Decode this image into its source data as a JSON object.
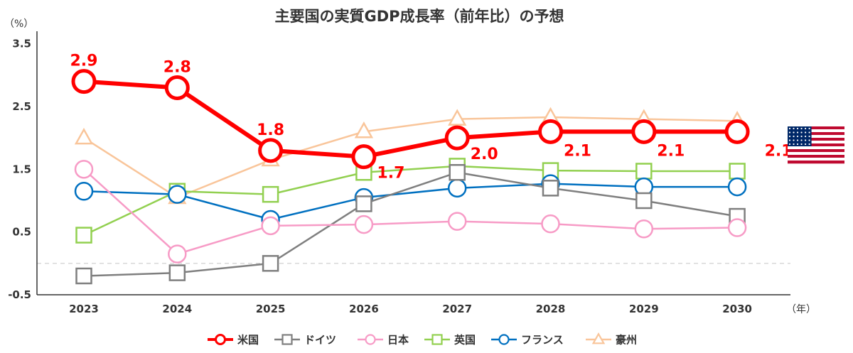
{
  "chart_data": {
    "type": "line",
    "title": "主要国の実質GDP成長率（前年比）の予想",
    "ylabel": "（%）",
    "xlabel": "（年）",
    "categories": [
      "2023",
      "2024",
      "2025",
      "2026",
      "2027",
      "2028",
      "2029",
      "2030"
    ],
    "ylim": [
      -0.5,
      3.7
    ],
    "yticks": [
      "3.5",
      "2.5",
      "1.5",
      "0.5",
      "-0.5"
    ],
    "zero_line": true,
    "legend_position": "bottom",
    "series": [
      {
        "name": "米国",
        "color": "#ff0000",
        "marker": "circle",
        "emphasis": true,
        "values": [
          2.9,
          2.8,
          1.8,
          1.7,
          2.0,
          2.1,
          2.1,
          2.1
        ],
        "labels": [
          "2.9",
          "2.8",
          "1.8",
          "1.7",
          "2.0",
          "2.1",
          "2.1",
          "2.1"
        ]
      },
      {
        "name": "ドイツ",
        "color": "#7f7f7f",
        "marker": "square",
        "values": [
          -0.2,
          -0.15,
          0.0,
          0.95,
          1.45,
          1.2,
          1.0,
          0.75
        ]
      },
      {
        "name": "日本",
        "color": "#f79bc6",
        "marker": "circle",
        "values": [
          1.5,
          0.15,
          0.6,
          0.62,
          0.67,
          0.63,
          0.55,
          0.57
        ]
      },
      {
        "name": "英国",
        "color": "#92d050",
        "marker": "square",
        "values": [
          0.45,
          1.15,
          1.1,
          1.45,
          1.55,
          1.48,
          1.47,
          1.47
        ]
      },
      {
        "name": "フランス",
        "color": "#0070c0",
        "marker": "circle",
        "values": [
          1.15,
          1.1,
          0.7,
          1.05,
          1.2,
          1.27,
          1.22,
          1.22
        ]
      },
      {
        "name": "豪州",
        "color": "#f9c59a",
        "marker": "triangle",
        "values": [
          2.0,
          1.05,
          1.65,
          2.1,
          2.3,
          2.33,
          2.3,
          2.27
        ]
      }
    ]
  },
  "flag": {
    "name": "us-flag-icon"
  }
}
